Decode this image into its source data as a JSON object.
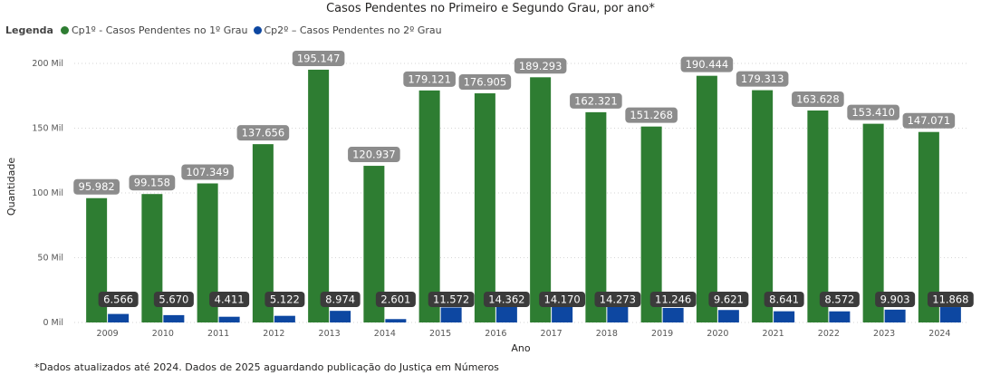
{
  "colors": {
    "primary": "#2e7d32",
    "secondary": "#0d47a1",
    "label_bg_primary": "#8c8c8c",
    "label_bg_secondary": "#3b3b3b"
  },
  "legend": {
    "title": "Legenda"
  },
  "footnote": "*Dados atualizados até 2024. Dados de 2025 aguardando publicação do Justiça em Números",
  "chart_data": {
    "type": "bar",
    "title": "Casos Pendentes no Primeiro e Segundo Grau, por ano*",
    "xlabel": "Ano",
    "ylabel": "Quantidade",
    "ylim": [
      0,
      210000
    ],
    "yticks": [
      {
        "value": 0,
        "label": "0 Mil"
      },
      {
        "value": 50000,
        "label": "50 Mil"
      },
      {
        "value": 100000,
        "label": "100 Mil"
      },
      {
        "value": 150000,
        "label": "150 Mil"
      },
      {
        "value": 200000,
        "label": "200 Mil"
      }
    ],
    "grid": true,
    "legend_position": "top-left",
    "categories": [
      "2009",
      "2010",
      "2011",
      "2012",
      "2013",
      "2014",
      "2015",
      "2016",
      "2017",
      "2018",
      "2019",
      "2020",
      "2021",
      "2022",
      "2023",
      "2024"
    ],
    "series": [
      {
        "name": "Cp1º - Casos Pendentes no 1º Grau",
        "values": [
          95982,
          99158,
          107349,
          137656,
          195147,
          120937,
          179121,
          176905,
          189293,
          162321,
          151268,
          190444,
          179313,
          163628,
          153410,
          147071
        ],
        "labels": [
          "95.982",
          "99.158",
          "107.349",
          "137.656",
          "195.147",
          "120.937",
          "179.121",
          "176.905",
          "189.293",
          "162.321",
          "151.268",
          "190.444",
          "179.313",
          "163.628",
          "153.410",
          "147.071"
        ]
      },
      {
        "name": "Cp2º – Casos Pendentes no 2º Grau",
        "values": [
          6566,
          5670,
          4411,
          5122,
          8974,
          2601,
          11572,
          14362,
          14170,
          14273,
          11246,
          9621,
          8641,
          8572,
          9903,
          11868
        ],
        "labels": [
          "6.566",
          "5.670",
          "4.411",
          "5.122",
          "8.974",
          "2.601",
          "11.572",
          "14.362",
          "14.170",
          "14.273",
          "11.246",
          "9.621",
          "8.641",
          "8.572",
          "9.903",
          "11.868"
        ]
      }
    ]
  }
}
